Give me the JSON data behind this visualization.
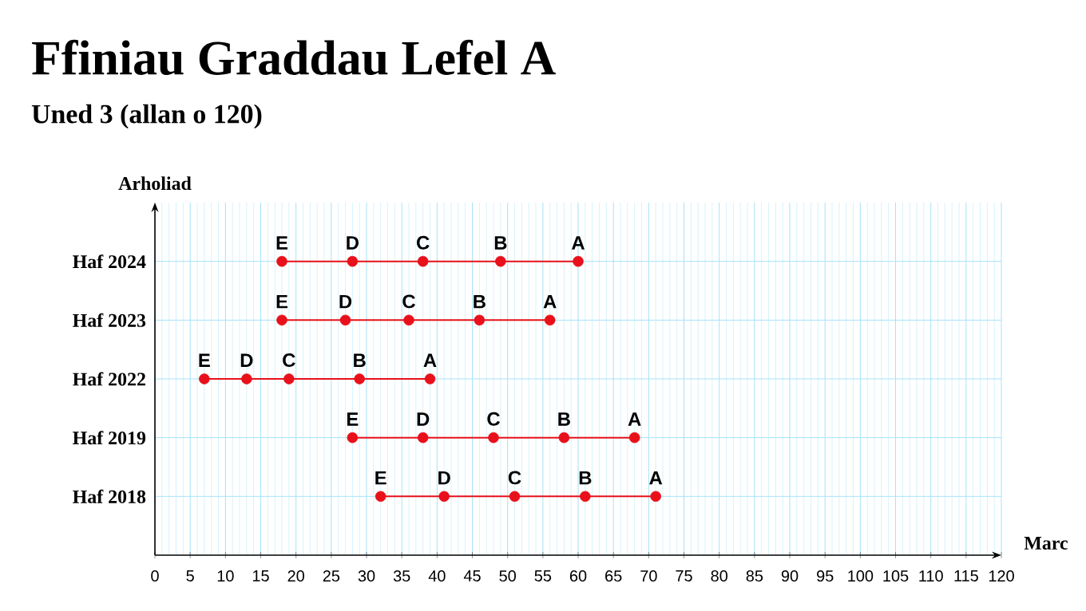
{
  "chart_data": {
    "type": "scatter",
    "orientation": "horizontal",
    "title": "Ffiniau Graddau Lefel A",
    "subtitle": "Uned 3 (allan o 120)",
    "xlabel": "Marc",
    "ylabel": "Arholiad",
    "categories": [
      "Haf 2024",
      "Haf 2023",
      "Haf 2022",
      "Haf 2019",
      "Haf 2018"
    ],
    "series": [
      {
        "name": "E",
        "color": "#e8101a",
        "values": [
          18,
          18,
          7,
          28,
          32
        ]
      },
      {
        "name": "D",
        "color": "#e8101a",
        "values": [
          28,
          27,
          13,
          38,
          41
        ]
      },
      {
        "name": "C",
        "color": "#e8101a",
        "values": [
          38,
          36,
          19,
          48,
          51
        ]
      },
      {
        "name": "B",
        "color": "#e8101a",
        "values": [
          49,
          46,
          29,
          58,
          61
        ]
      },
      {
        "name": "A",
        "color": "#e8101a",
        "values": [
          60,
          56,
          39,
          68,
          71
        ]
      }
    ],
    "xlim": [
      0,
      120
    ],
    "xticks": [
      0,
      {
        "value": 1,
        "label": null
      },
      {
        "value": 2,
        "label": null
      },
      {
        "value": 3,
        "label": null
      },
      {
        "value": 4,
        "label": null
      },
      5,
      {
        "value": 6,
        "label": null
      },
      {
        "value": 7,
        "label": null
      },
      {
        "value": 8,
        "label": null
      },
      {
        "value": 9,
        "label": null
      },
      10,
      {
        "value": 11,
        "label": null
      },
      {
        "value": 12,
        "label": null
      },
      {
        "value": 13,
        "label": null
      },
      {
        "value": 14,
        "label": null
      },
      15,
      {
        "value": 16,
        "label": null
      },
      {
        "value": 17,
        "label": null
      },
      {
        "value": 18,
        "label": null
      },
      {
        "value": 19,
        "label": null
      },
      20,
      {
        "value": 21,
        "label": null
      },
      {
        "value": 22,
        "label": null
      },
      {
        "value": 23,
        "label": null
      },
      {
        "value": 24,
        "label": null
      },
      25,
      {
        "value": 26,
        "label": null
      },
      {
        "value": 27,
        "label": null
      },
      {
        "value": 28,
        "label": null
      },
      {
        "value": 29,
        "label": null
      },
      30,
      {
        "value": 31,
        "label": null
      },
      {
        "value": 32,
        "label": null
      },
      {
        "value": 33,
        "label": null
      },
      {
        "value": 34,
        "label": null
      },
      35,
      {
        "value": 36,
        "label": null
      },
      {
        "value": 37,
        "label": null
      },
      {
        "value": 38,
        "label": null
      },
      {
        "value": 39,
        "label": null
      },
      40,
      {
        "value": 41,
        "label": null
      },
      {
        "value": 42,
        "label": null
      },
      {
        "value": 43,
        "label": null
      },
      {
        "value": 44,
        "label": null
      },
      45,
      {
        "value": 46,
        "label": null
      },
      {
        "value": 47,
        "label": null
      },
      {
        "value": 48,
        "label": null
      },
      {
        "value": 49,
        "label": null
      },
      50,
      {
        "value": 51,
        "label": null
      },
      {
        "value": 52,
        "label": null
      },
      {
        "value": 53,
        "label": null
      },
      {
        "value": 54,
        "label": null
      },
      55,
      {
        "value": 56,
        "label": null
      },
      {
        "value": 57,
        "label": null
      },
      {
        "value": 58,
        "label": null
      },
      {
        "value": 59,
        "label": null
      },
      60,
      {
        "value": 61,
        "label": null
      },
      {
        "value": 62,
        "label": null
      },
      {
        "value": 63,
        "label": null
      },
      {
        "value": 64,
        "label": null
      },
      65,
      {
        "value": 66,
        "label": null
      },
      {
        "value": 67,
        "label": null
      },
      {
        "value": 68,
        "label": null
      },
      {
        "value": 69,
        "label": null
      },
      70,
      {
        "value": 71,
        "label": null
      },
      {
        "value": 72,
        "label": null
      },
      {
        "value": 73,
        "label": null
      },
      {
        "value": 74,
        "label": null
      },
      75,
      {
        "value": 76,
        "label": null
      },
      {
        "value": 77,
        "label": null
      },
      {
        "value": 78,
        "label": null
      },
      {
        "value": 79,
        "label": null
      },
      80,
      {
        "value": 81,
        "label": null
      },
      {
        "value": 82,
        "label": null
      },
      {
        "value": 83,
        "label": null
      },
      {
        "value": 84,
        "label": null
      },
      85,
      {
        "value": 86,
        "label": null
      },
      {
        "value": 87,
        "label": null
      },
      {
        "value": 88,
        "label": null
      },
      {
        "value": 89,
        "label": null
      },
      90,
      {
        "value": 91,
        "label": null
      },
      {
        "value": 92,
        "label": null
      },
      {
        "value": 93,
        "label": null
      },
      {
        "value": 94,
        "label": null
      },
      95,
      {
        "value": 96,
        "label": null
      },
      {
        "value": 97,
        "label": null
      },
      {
        "value": 98,
        "label": null
      },
      {
        "value": 99,
        "label": null
      },
      100,
      {
        "value": 101,
        "label": null
      },
      {
        "value": 102,
        "label": null
      },
      {
        "value": 103,
        "label": null
      },
      {
        "value": 104,
        "label": null
      },
      105,
      {
        "value": 106,
        "label": null
      },
      {
        "value": 107,
        "label": null
      },
      {
        "value": 108,
        "label": null
      },
      {
        "value": 109,
        "label": null
      },
      110,
      {
        "value": 111,
        "label": null
      },
      {
        "value": 112,
        "label": null
      },
      {
        "value": 113,
        "label": null
      },
      {
        "value": 114,
        "label": null
      },
      115,
      {
        "value": 116,
        "label": null
      },
      {
        "value": 117,
        "label": null
      },
      {
        "value": 118,
        "label": null
      },
      {
        "value": 119,
        "label": null
      },
      120
    ],
    "grid": true,
    "marker": "circle"
  }
}
